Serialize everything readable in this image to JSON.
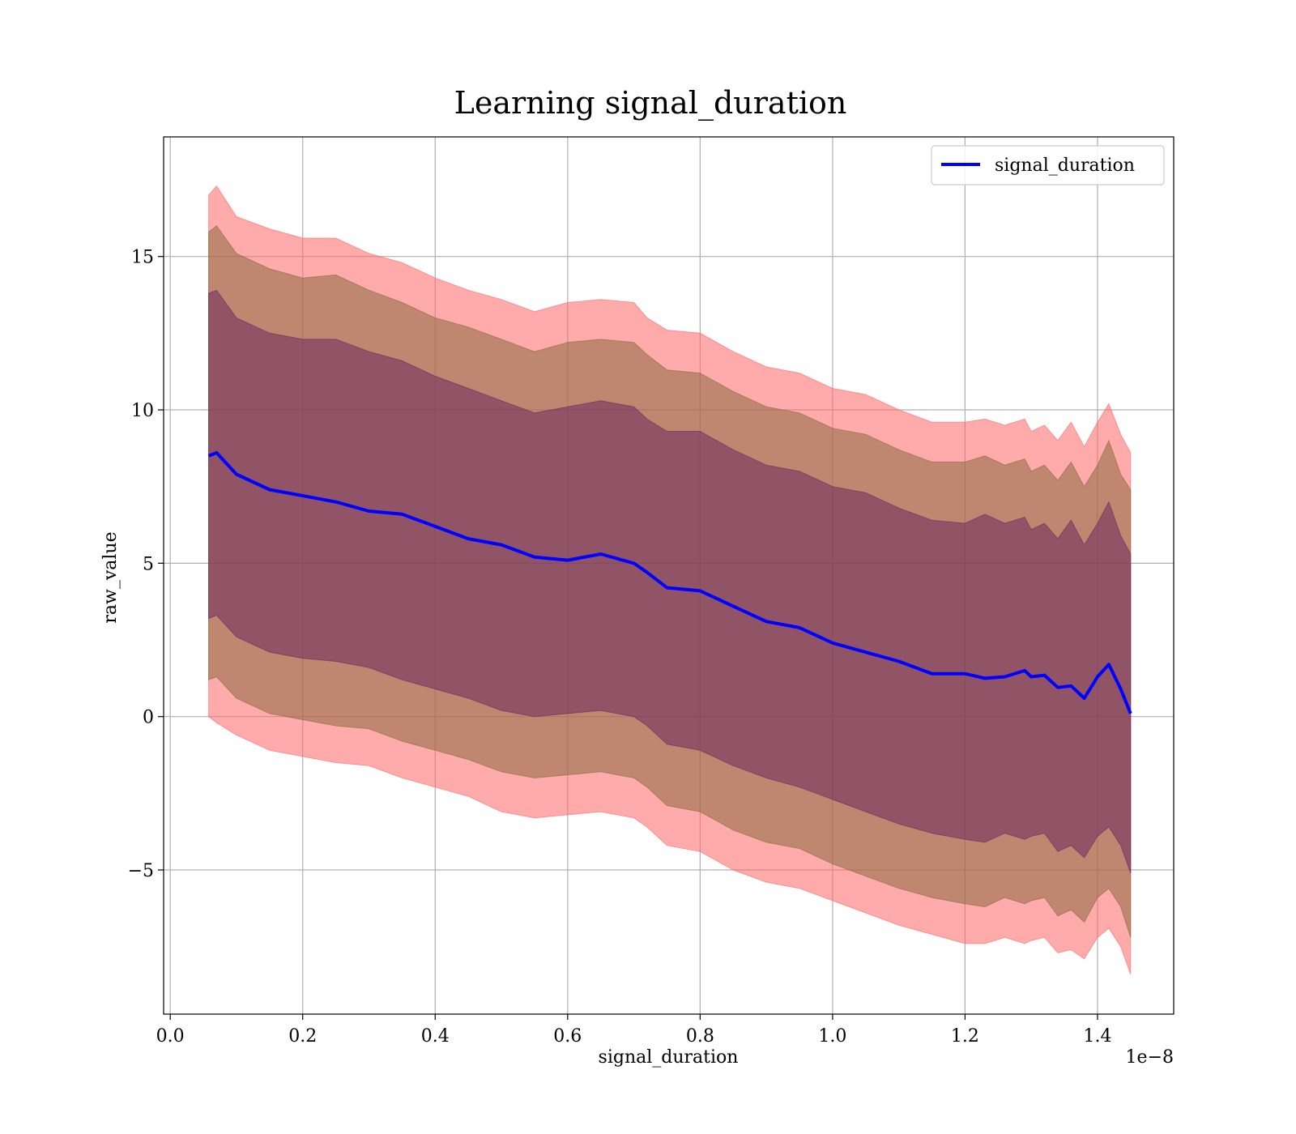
{
  "chart_data": {
    "type": "line",
    "title": "Learning signal_duration",
    "xlabel": "signal_duration",
    "ylabel": "raw_value",
    "x_offset_text": "1e−8",
    "xlim": [
      -0.01,
      1.515
    ],
    "ylim": [
      -9.7,
      18.9
    ],
    "x_ticks": [
      0.0,
      0.2,
      0.4,
      0.6,
      0.8,
      1.0,
      1.2,
      1.4
    ],
    "x_tick_labels": [
      "0.0",
      "0.2",
      "0.4",
      "0.6",
      "0.8",
      "1.0",
      "1.2",
      "1.4"
    ],
    "y_ticks": [
      -5,
      0,
      5,
      10,
      15
    ],
    "y_tick_labels": [
      "−5",
      "0",
      "5",
      "10",
      "15"
    ],
    "grid": true,
    "legend": {
      "position": "top-right",
      "entries": [
        "signal_duration"
      ]
    },
    "colors": {
      "line": "#0000ff",
      "band_outer": "#ff6666",
      "band_middle": "#8b6a3e",
      "band_inner": "#6a2a5e"
    },
    "x": [
      0.058,
      0.07,
      0.1,
      0.15,
      0.2,
      0.25,
      0.3,
      0.35,
      0.4,
      0.45,
      0.5,
      0.55,
      0.6,
      0.65,
      0.7,
      0.72,
      0.75,
      0.8,
      0.85,
      0.9,
      0.95,
      1.0,
      1.05,
      1.1,
      1.15,
      1.2,
      1.23,
      1.26,
      1.29,
      1.3,
      1.32,
      1.34,
      1.36,
      1.38,
      1.4,
      1.417,
      1.435,
      1.45
    ],
    "series": [
      {
        "name": "signal_duration",
        "values": [
          8.5,
          8.6,
          7.9,
          7.4,
          7.2,
          7.0,
          6.7,
          6.6,
          6.2,
          5.8,
          5.6,
          5.2,
          5.1,
          5.3,
          5.0,
          4.7,
          4.2,
          4.1,
          3.6,
          3.1,
          2.9,
          2.4,
          2.1,
          1.8,
          1.4,
          1.4,
          1.25,
          1.3,
          1.5,
          1.3,
          1.35,
          0.95,
          1.0,
          0.6,
          1.3,
          1.7,
          0.9,
          0.1
        ],
        "bands": [
          {
            "upper": [
              17.0,
              17.3,
              16.3,
              15.9,
              15.6,
              15.6,
              15.1,
              14.8,
              14.3,
              13.9,
              13.6,
              13.2,
              13.5,
              13.6,
              13.5,
              13.0,
              12.6,
              12.5,
              11.9,
              11.4,
              11.2,
              10.7,
              10.5,
              10.0,
              9.6,
              9.6,
              9.7,
              9.5,
              9.7,
              9.3,
              9.5,
              9.0,
              9.6,
              8.8,
              9.6,
              10.2,
              9.2,
              8.6
            ],
            "lower": [
              0.0,
              -0.2,
              -0.6,
              -1.1,
              -1.3,
              -1.5,
              -1.6,
              -2.0,
              -2.3,
              -2.6,
              -3.1,
              -3.3,
              -3.2,
              -3.1,
              -3.3,
              -3.6,
              -4.2,
              -4.4,
              -5.0,
              -5.4,
              -5.6,
              -6.0,
              -6.4,
              -6.8,
              -7.1,
              -7.4,
              -7.4,
              -7.2,
              -7.4,
              -7.3,
              -7.2,
              -7.7,
              -7.6,
              -7.9,
              -7.2,
              -6.9,
              -7.5,
              -8.4
            ]
          },
          {
            "upper": [
              15.8,
              16.0,
              15.1,
              14.6,
              14.3,
              14.4,
              13.9,
              13.5,
              13.0,
              12.7,
              12.3,
              11.9,
              12.2,
              12.3,
              12.2,
              11.8,
              11.3,
              11.2,
              10.6,
              10.1,
              9.9,
              9.4,
              9.2,
              8.7,
              8.3,
              8.3,
              8.5,
              8.2,
              8.4,
              8.0,
              8.2,
              7.7,
              8.3,
              7.5,
              8.2,
              9.0,
              7.9,
              7.4
            ],
            "lower": [
              1.2,
              1.3,
              0.6,
              0.1,
              -0.1,
              -0.3,
              -0.4,
              -0.8,
              -1.1,
              -1.4,
              -1.8,
              -2.0,
              -1.9,
              -1.8,
              -2.0,
              -2.3,
              -2.9,
              -3.1,
              -3.7,
              -4.1,
              -4.3,
              -4.8,
              -5.2,
              -5.6,
              -5.9,
              -6.1,
              -6.2,
              -5.9,
              -6.1,
              -6.0,
              -5.9,
              -6.5,
              -6.3,
              -6.7,
              -5.9,
              -5.6,
              -6.2,
              -7.2
            ]
          },
          {
            "upper": [
              13.8,
              13.9,
              13.0,
              12.5,
              12.3,
              12.3,
              11.9,
              11.6,
              11.1,
              10.7,
              10.3,
              9.9,
              10.1,
              10.3,
              10.1,
              9.7,
              9.3,
              9.3,
              8.7,
              8.2,
              8.0,
              7.5,
              7.3,
              6.8,
              6.4,
              6.3,
              6.6,
              6.3,
              6.5,
              6.1,
              6.3,
              5.8,
              6.4,
              5.6,
              6.3,
              7.0,
              5.9,
              5.3
            ],
            "lower": [
              3.2,
              3.3,
              2.6,
              2.1,
              1.9,
              1.8,
              1.6,
              1.2,
              0.9,
              0.6,
              0.2,
              0.0,
              0.1,
              0.2,
              0.0,
              -0.3,
              -0.9,
              -1.1,
              -1.6,
              -2.0,
              -2.3,
              -2.7,
              -3.1,
              -3.5,
              -3.8,
              -4.0,
              -4.1,
              -3.8,
              -4.0,
              -3.9,
              -3.8,
              -4.4,
              -4.2,
              -4.6,
              -3.9,
              -3.6,
              -4.2,
              -5.1
            ]
          }
        ]
      }
    ]
  }
}
